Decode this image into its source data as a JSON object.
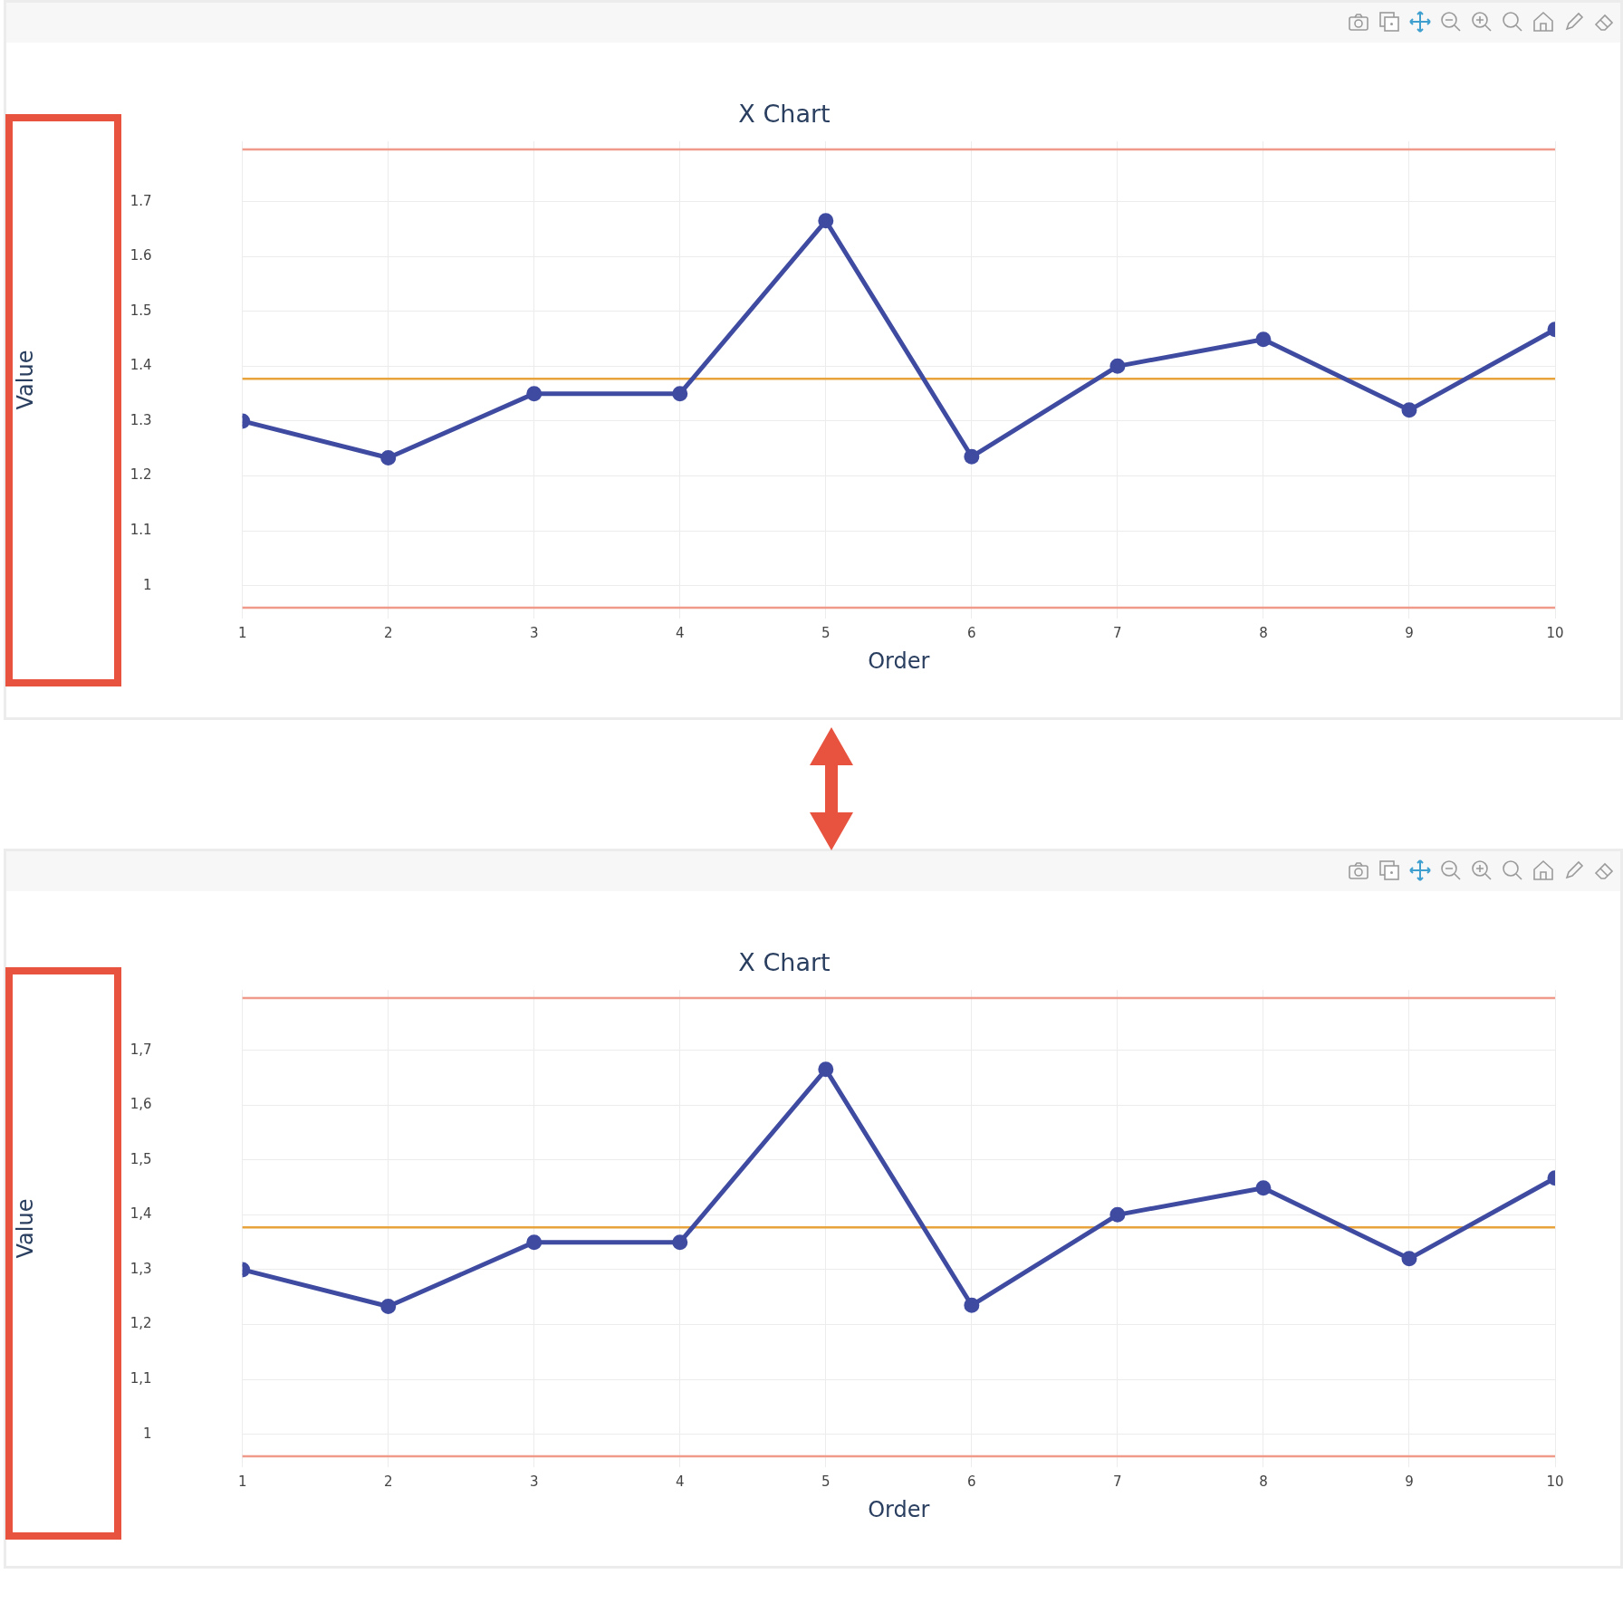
{
  "chart_data": [
    {
      "type": "line",
      "title": "X Chart",
      "xlabel": "Order",
      "ylabel": "Value",
      "x": [
        1,
        2,
        3,
        4,
        5,
        6,
        7,
        8,
        9,
        10
      ],
      "series": [
        {
          "color": "#3f4ba0",
          "values": [
            1.3,
            1.233,
            1.35,
            1.35,
            1.665,
            1.235,
            1.4,
            1.449,
            1.32,
            1.467
          ]
        }
      ],
      "xlim": [
        1,
        10
      ],
      "xticks": [
        1,
        2,
        3,
        4,
        5,
        6,
        7,
        8,
        9,
        10
      ],
      "ylim": [
        0.94,
        1.81
      ],
      "yticks": [
        1,
        1.1,
        1.2,
        1.3,
        1.4,
        1.5,
        1.6,
        1.7
      ],
      "ref_lines": [
        {
          "axis": "y",
          "value": 1.795,
          "color": "#f09a8c"
        },
        {
          "axis": "y",
          "value": 1.377,
          "color": "#e8a33d"
        },
        {
          "axis": "y",
          "value": 0.96,
          "color": "#f09a8c"
        }
      ],
      "grid": true,
      "legend": false,
      "marker": "circle",
      "line_style": "solid"
    },
    {
      "type": "line",
      "title": "X Chart",
      "xlabel": "Order",
      "ylabel": "Value",
      "x": [
        1,
        2,
        3,
        4,
        5,
        6,
        7,
        8,
        9,
        10
      ],
      "series": [
        {
          "color": "#3f4ba0",
          "values": [
            1.3,
            1.233,
            1.35,
            1.35,
            1.665,
            1.235,
            1.4,
            1.449,
            1.32,
            1.467
          ]
        }
      ],
      "xlim": [
        1,
        10
      ],
      "xticks": [
        1,
        2,
        3,
        4,
        5,
        6,
        7,
        8,
        9,
        10
      ],
      "ylim": [
        0.94,
        1.81
      ],
      "yticks": [
        1,
        {
          "value": 1.1,
          "label": "1,1"
        },
        {
          "value": 1.2,
          "label": "1,2"
        },
        {
          "value": 1.3,
          "label": "1,3"
        },
        {
          "value": 1.4,
          "label": "1,4"
        },
        {
          "value": 1.5,
          "label": "1,5"
        },
        {
          "value": 1.6,
          "label": "1,6"
        },
        {
          "value": 1.7,
          "label": "1,7"
        }
      ],
      "ref_lines": [
        {
          "axis": "y",
          "value": 1.795,
          "color": "#f09a8c"
        },
        {
          "axis": "y",
          "value": 1.377,
          "color": "#e8a33d"
        },
        {
          "axis": "y",
          "value": 0.96,
          "color": "#f09a8c"
        }
      ],
      "grid": true,
      "legend": false,
      "marker": "circle",
      "line_style": "solid"
    }
  ]
}
